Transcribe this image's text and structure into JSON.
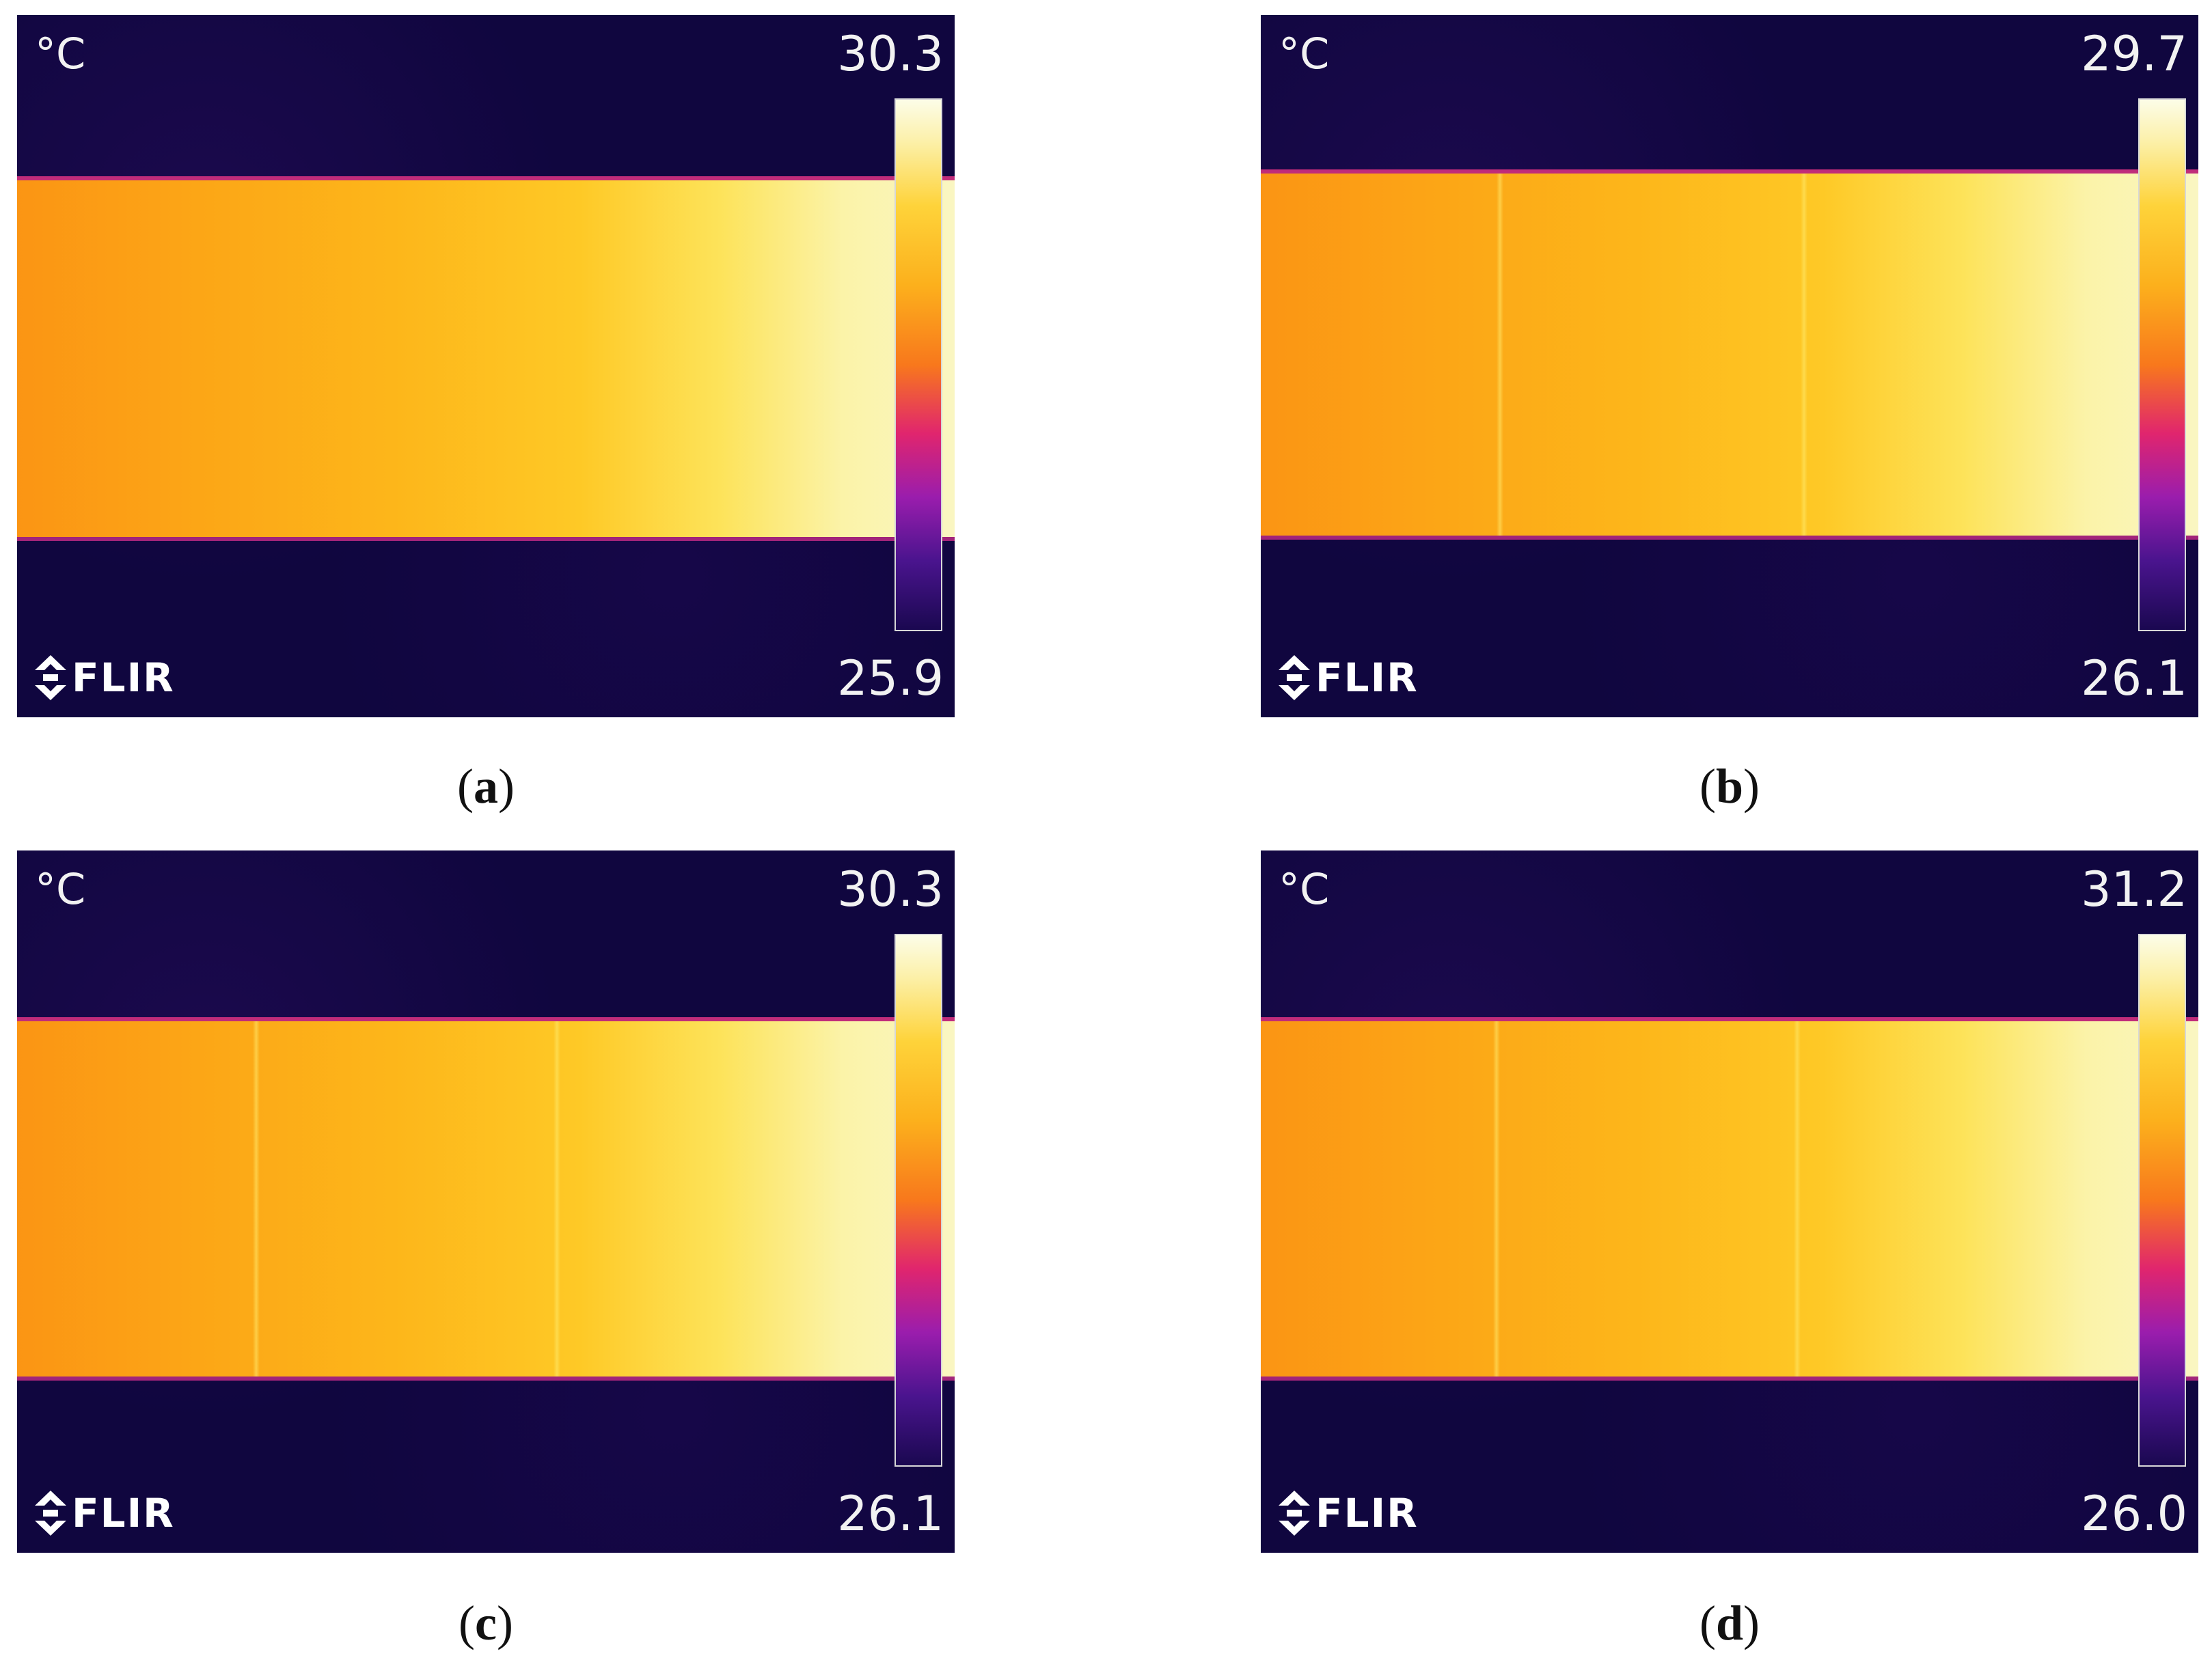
{
  "panels": [
    {
      "id": "a",
      "unit": "°C",
      "max": "30.3",
      "min": "25.9",
      "logo_text": "FLIR",
      "caption_open": "(",
      "caption_letter": "a",
      "caption_close": ")"
    },
    {
      "id": "b",
      "unit": "°C",
      "max": "29.7",
      "min": "26.1",
      "logo_text": "FLIR",
      "caption_open": "(",
      "caption_letter": "b",
      "caption_close": ")"
    },
    {
      "id": "c",
      "unit": "°C",
      "max": "30.3",
      "min": "26.1",
      "logo_text": "FLIR",
      "caption_open": "(",
      "caption_letter": "c",
      "caption_close": ")"
    },
    {
      "id": "d",
      "unit": "°C",
      "max": "31.2",
      "min": "26.0",
      "logo_text": "FLIR",
      "caption_open": "(",
      "caption_letter": "d",
      "caption_close": ")"
    }
  ],
  "colors": {
    "background_cold": "#10063f",
    "hot_strip": "#fdb61a",
    "hottest": "#faf6c2",
    "edge": "#c02c7a"
  },
  "icons": {
    "logo": "flir-diamond-icon"
  }
}
